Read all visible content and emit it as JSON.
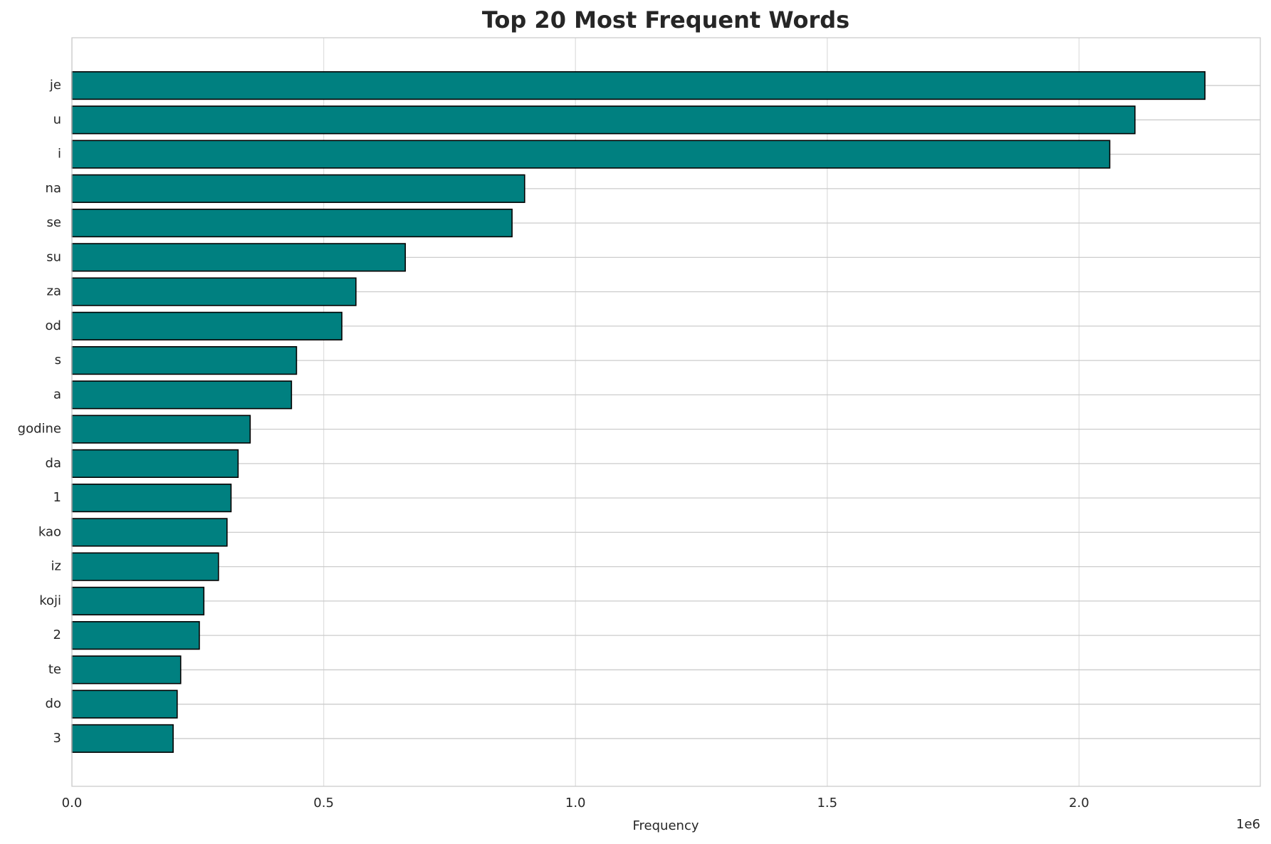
{
  "chart_data": {
    "type": "barh",
    "title": "Top 20 Most Frequent Words",
    "x_label": "Frequency",
    "x_offset_label": "1e6",
    "categories": [
      "je",
      "u",
      "i",
      "na",
      "se",
      "su",
      "za",
      "od",
      "s",
      "a",
      "godine",
      "da",
      "1",
      "kao",
      "iz",
      "koji",
      "2",
      "te",
      "do",
      "3"
    ],
    "values": [
      2250000,
      2111000,
      2061000,
      899000,
      874000,
      662000,
      564000,
      536000,
      446000,
      436000,
      354000,
      330000,
      316000,
      308000,
      291000,
      262000,
      253000,
      216000,
      209000,
      201000
    ],
    "color": "#008080",
    "edge_color": "#000000",
    "xlim": [
      0,
      2360000
    ],
    "xticks": [
      {
        "value": 0,
        "label": "0.0"
      },
      {
        "value": 500000,
        "label": "0.5"
      },
      {
        "value": 1000000,
        "label": "1.0"
      },
      {
        "value": 1500000,
        "label": "1.5"
      },
      {
        "value": 2000000,
        "label": "2.0"
      }
    ],
    "grid": true
  }
}
